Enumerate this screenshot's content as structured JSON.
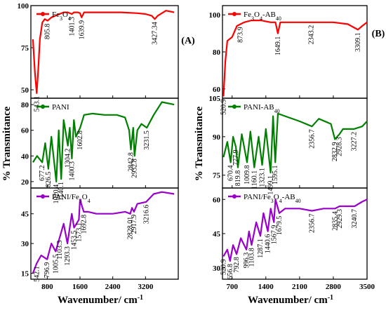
{
  "chart_data": [
    {
      "type": "line",
      "label": "(A)",
      "xlabel": "Wavenumber/ cm",
      "xlabel_sup": "-1",
      "ylabel": "% Transmitance",
      "xlim": [
        400,
        4000
      ],
      "xticks": [
        800,
        1600,
        2400,
        3200
      ],
      "subplots": [
        {
          "name": "Fe3O4",
          "legend": "Fe3O4",
          "color": "#ff0000",
          "ylim": [
            45,
            100
          ],
          "yticks": [
            50,
            75,
            100
          ],
          "x": [
            450,
            500,
            543.1,
            580,
            620,
            680,
            740,
            805.8,
            900,
            1000,
            1100,
            1200,
            1300,
            1401.3,
            1450,
            1550,
            1600,
            1639.9,
            1700,
            1900,
            2200,
            2600,
            3000,
            3200,
            3350,
            3427.34,
            3500,
            3700,
            3900
          ],
          "y": [
            80,
            60,
            48,
            62,
            80,
            90,
            92,
            91,
            93,
            94,
            95,
            96,
            96,
            95,
            96,
            96,
            95.5,
            93,
            96,
            96,
            96,
            96,
            95.5,
            95,
            94,
            92,
            94,
            97,
            96
          ],
          "annotations": [
            {
              "text": "543.1",
              "x": 543.1,
              "y": 48
            },
            {
              "text": "805.8",
              "x": 805.8,
              "y": 91
            },
            {
              "text": "1401.3",
              "x": 1401.3,
              "y": 95
            },
            {
              "text": "1639.9",
              "x": 1639.9,
              "y": 93
            },
            {
              "text": "3427.34",
              "x": 3427.34,
              "y": 92
            }
          ]
        },
        {
          "name": "PANI",
          "legend": "PANI",
          "color": "#008000",
          "ylim": [
            15,
            85
          ],
          "yticks": [
            20,
            40,
            60,
            80
          ],
          "x": [
            450,
            550,
            677.2,
            750,
            826.5,
            900,
            1020.4,
            1080,
            1140.1,
            1200,
            1304.2,
            1350,
            1400.3,
            1450,
            1500,
            1602.8,
            1700,
            1900,
            2200,
            2500,
            2700,
            2800,
            2842.8,
            2900,
            2932.8,
            3000,
            3100,
            3231.5,
            3400,
            3600,
            3900
          ],
          "y": [
            35,
            40,
            35,
            50,
            30,
            55,
            20,
            60,
            22,
            68,
            48,
            62,
            38,
            68,
            55,
            62,
            72,
            73,
            72,
            72,
            70,
            60,
            45,
            62,
            40,
            60,
            65,
            62,
            72,
            82,
            80
          ],
          "annotations": [
            {
              "text": "677.2",
              "x": 677.2,
              "y": 35
            },
            {
              "text": "826.5",
              "x": 826.5,
              "y": 30
            },
            {
              "text": "1020.4",
              "x": 1020.4,
              "y": 20
            },
            {
              "text": "1140.1",
              "x": 1140.1,
              "y": 22
            },
            {
              "text": "1304.2",
              "x": 1304.2,
              "y": 48
            },
            {
              "text": "1400.3",
              "x": 1400.3,
              "y": 38
            },
            {
              "text": "1602.8",
              "x": 1602.8,
              "y": 62
            },
            {
              "text": "2842.8",
              "x": 2842.8,
              "y": 45
            },
            {
              "text": "2932.8",
              "x": 2932.8,
              "y": 40
            },
            {
              "text": "3231.5",
              "x": 3231.5,
              "y": 62
            }
          ]
        },
        {
          "name": "PANI/Fe3O4",
          "legend": "PANI/Fe3O4",
          "color": "#9900cc",
          "ylim": [
            12,
            58
          ],
          "yticks": [
            15,
            30,
            45
          ],
          "x": [
            450,
            542.1,
            650,
            796.9,
            900,
            1005.5,
            1103.3,
            1200,
            1293.3,
            1400,
            1453.5,
            1573.1,
            1600,
            1692.8,
            1800,
            2000,
            2400,
            2700,
            2828.01,
            2870,
            2917.9,
            3000,
            3216.6,
            3400,
            3600,
            3900
          ],
          "y": [
            15,
            20,
            24,
            22,
            30,
            26,
            33,
            40,
            30,
            45,
            38,
            42,
            52,
            46,
            46,
            45,
            45,
            46,
            45,
            48,
            46,
            50,
            51,
            55,
            56,
            55
          ],
          "annotations": [
            {
              "text": "542.1",
              "x": 542.1,
              "y": 20
            },
            {
              "text": "796.9",
              "x": 796.9,
              "y": 22
            },
            {
              "text": "1005.5",
              "x": 1005.5,
              "y": 26
            },
            {
              "text": "1103.3",
              "x": 1103.3,
              "y": 33
            },
            {
              "text": "1293.3",
              "x": 1293.3,
              "y": 30
            },
            {
              "text": "1453.5",
              "x": 1453.5,
              "y": 38
            },
            {
              "text": "1573.1",
              "x": 1573.1,
              "y": 42
            },
            {
              "text": "1692.8",
              "x": 1692.8,
              "y": 46
            },
            {
              "text": "2828.01",
              "x": 2828.01,
              "y": 45
            },
            {
              "text": "2917.9",
              "x": 2917.9,
              "y": 46
            },
            {
              "text": "3216.6",
              "x": 3216.6,
              "y": 51
            }
          ]
        }
      ]
    },
    {
      "type": "line",
      "label": "(B)",
      "xlabel": "Wavenumber/ cm",
      "xlabel_sup": "-1",
      "ylabel": "% Transmitance",
      "xlim": [
        500,
        3500
      ],
      "xticks": [
        700,
        1400,
        2100,
        2800,
        3500
      ],
      "subplots": [
        {
          "name": "Fe3O4-AB40",
          "legend": "Fe3O4-AB40",
          "color": "#ff0000",
          "ylim": [
            55,
            105
          ],
          "yticks": [
            60,
            80,
            100
          ],
          "x": [
            520,
            560,
            600,
            700,
            800,
            873.9,
            950,
            1100,
            1300,
            1500,
            1600,
            1649.1,
            1700,
            1900,
            2200,
            2343.2,
            2500,
            2800,
            3100,
            3309.1,
            3400,
            3500
          ],
          "y": [
            56,
            75,
            86,
            88,
            94,
            95,
            96,
            97,
            97,
            96,
            96,
            90,
            96,
            96,
            96,
            96,
            96,
            96,
            95,
            92,
            94,
            96
          ],
          "annotations": [
            {
              "text": "520.9",
              "x": 520.9,
              "y": 56
            },
            {
              "text": "873.9",
              "x": 873.9,
              "y": 95
            },
            {
              "text": "1649.1",
              "x": 1649.1,
              "y": 90
            },
            {
              "text": "2343.2",
              "x": 2343.2,
              "y": 96
            },
            {
              "text": "3309.1",
              "x": 3309.1,
              "y": 92
            }
          ]
        },
        {
          "name": "PANI-AB40",
          "legend": "PANI-AB40",
          "color": "#008000",
          "ylim": [
            70,
            105
          ],
          "yticks": [
            75,
            90,
            105
          ],
          "x": [
            520,
            600,
            670.4,
            720,
            777.9,
            819.8,
            900,
            1009.8,
            1080,
            1160.1,
            1250,
            1323.1,
            1400,
            1499.1,
            1550,
            1595.1,
            1650,
            1800,
            2100,
            2356.7,
            2500,
            2750,
            2832.9,
            2928.3,
            3000,
            3227.2,
            3400,
            3500
          ],
          "y": [
            82,
            88,
            80,
            90,
            86,
            78,
            91,
            80,
            92,
            78,
            90,
            79,
            93,
            76,
            98,
            80,
            99,
            98,
            96,
            94,
            97,
            95,
            89,
            91,
            93,
            93,
            94,
            96
          ],
          "annotations": [
            {
              "text": "670.4",
              "x": 670.4,
              "y": 80
            },
            {
              "text": "777.9",
              "x": 777.9,
              "y": 86
            },
            {
              "text": "819.8",
              "x": 819.8,
              "y": 78
            },
            {
              "text": "1009.8",
              "x": 1009.8,
              "y": 80
            },
            {
              "text": "1160.1",
              "x": 1160.1,
              "y": 78
            },
            {
              "text": "1323.1",
              "x": 1323.1,
              "y": 79
            },
            {
              "text": "1499.1",
              "x": 1499.1,
              "y": 76
            },
            {
              "text": "1595.1",
              "x": 1595.1,
              "y": 80
            },
            {
              "text": "2356.7",
              "x": 2356.7,
              "y": 94
            },
            {
              "text": "2832.9",
              "x": 2832.9,
              "y": 89
            },
            {
              "text": "2928.3",
              "x": 2928.3,
              "y": 91
            },
            {
              "text": "3227.2",
              "x": 3227.2,
              "y": 93
            }
          ]
        },
        {
          "name": "PANI/Fe3O4-AB40",
          "legend": "PANI/Fe3O4-AB40",
          "color": "#9900cc",
          "ylim": [
            25,
            65
          ],
          "yticks": [
            30,
            45,
            60
          ],
          "x": [
            520,
            520.9,
            600,
            656.8,
            720,
            792.8,
            880,
            996.3,
            1050,
            1103.8,
            1200,
            1287.1,
            1350,
            1440.6,
            1500,
            1567.9,
            1600,
            1679.5,
            1800,
            2100,
            2356.7,
            2600,
            2835.4,
            2929.3,
            3100,
            3240.7,
            3400,
            3500
          ],
          "y": [
            35,
            35,
            38,
            33,
            40,
            36,
            43,
            38,
            46,
            40,
            50,
            44,
            54,
            46,
            56,
            50,
            60,
            54,
            56,
            56,
            55,
            56,
            56,
            57,
            57,
            57,
            59,
            60
          ],
          "annotations": [
            {
              "text": "520.9",
              "x": 520.9,
              "y": 35
            },
            {
              "text": "656.8",
              "x": 656.8,
              "y": 33
            },
            {
              "text": "792.8",
              "x": 792.8,
              "y": 36
            },
            {
              "text": "996.3",
              "x": 996.3,
              "y": 38
            },
            {
              "text": "1103.8",
              "x": 1103.8,
              "y": 40
            },
            {
              "text": "1287.1",
              "x": 1287.1,
              "y": 44
            },
            {
              "text": "1440.6",
              "x": 1440.6,
              "y": 46
            },
            {
              "text": "1567.9",
              "x": 1567.9,
              "y": 50
            },
            {
              "text": "1679.5",
              "x": 1679.5,
              "y": 54
            },
            {
              "text": "2356.7",
              "x": 2356.7,
              "y": 55
            },
            {
              "text": "2835.4",
              "x": 2835.4,
              "y": 56
            },
            {
              "text": "2929.3",
              "x": 2929.3,
              "y": 57
            },
            {
              "text": "3240.7",
              "x": 3240.7,
              "y": 57
            }
          ]
        }
      ]
    }
  ]
}
